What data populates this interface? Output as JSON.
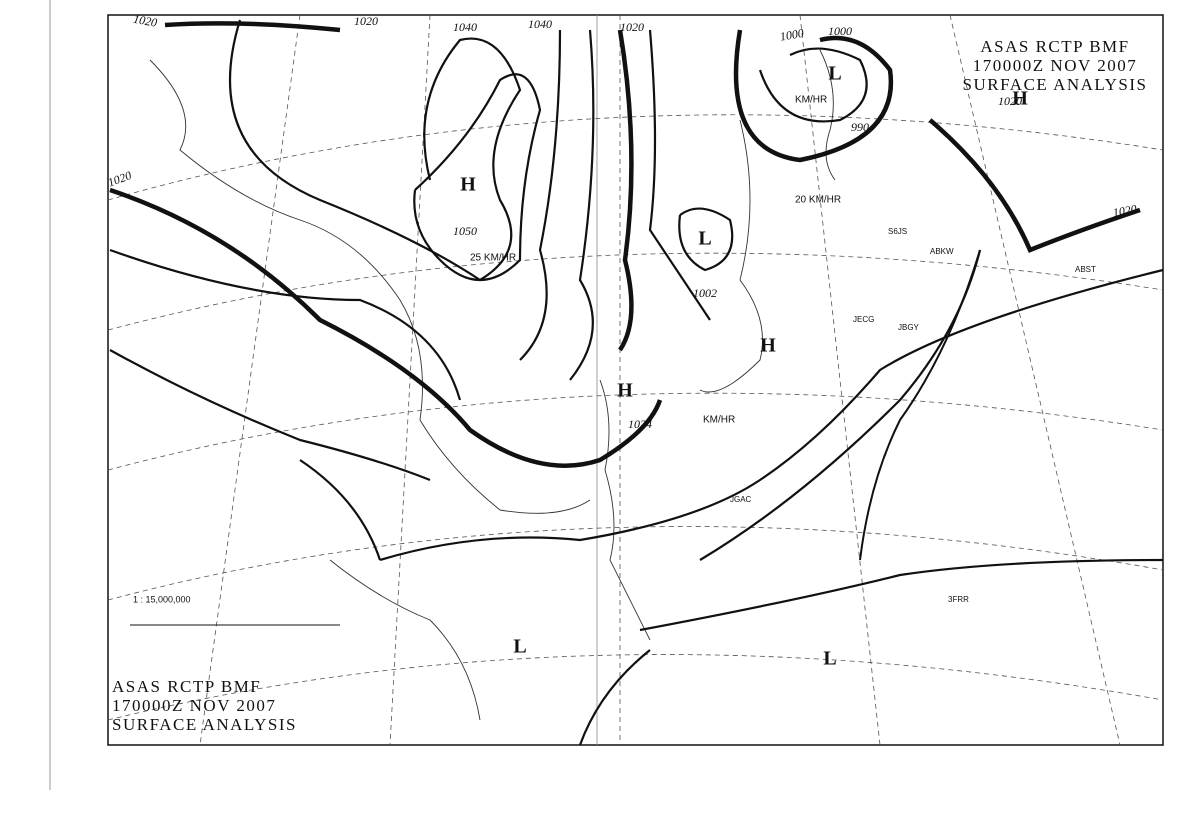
{
  "header": {
    "lines": [
      "ASAS  RCTP  BMF",
      "170000Z  NOV  2007",
      "SURFACE  ANALYSIS"
    ]
  },
  "footer": {
    "lines": [
      "ASAS  RCTP  BMF",
      "170000Z  NOV  2007",
      "SURFACE  ANALYSIS"
    ]
  },
  "scale": {
    "ratio": "1 : 15,000,000"
  },
  "pressure_centers": [
    {
      "label": "H",
      "value": "1050"
    },
    {
      "label": "L",
      "value": "1002"
    },
    {
      "label": "H",
      "value": "1024"
    },
    {
      "label": "L",
      "value": "990"
    },
    {
      "label": "H",
      "value": "1020"
    },
    {
      "label": "H"
    },
    {
      "label": "L"
    },
    {
      "label": "L"
    }
  ],
  "isobar_labels": [
    "1020",
    "1020",
    "1040",
    "1040",
    "1020",
    "1000",
    "1000",
    "1020",
    "1020"
  ],
  "motion_labels": [
    "25 KM/HR",
    "KM/HR",
    "20 KM/HR",
    "KM/HR"
  ],
  "stations": [
    "S6JS",
    "ABKW",
    "ABST",
    "JECG",
    "JBGY",
    "JGAC",
    "3FRR"
  ]
}
